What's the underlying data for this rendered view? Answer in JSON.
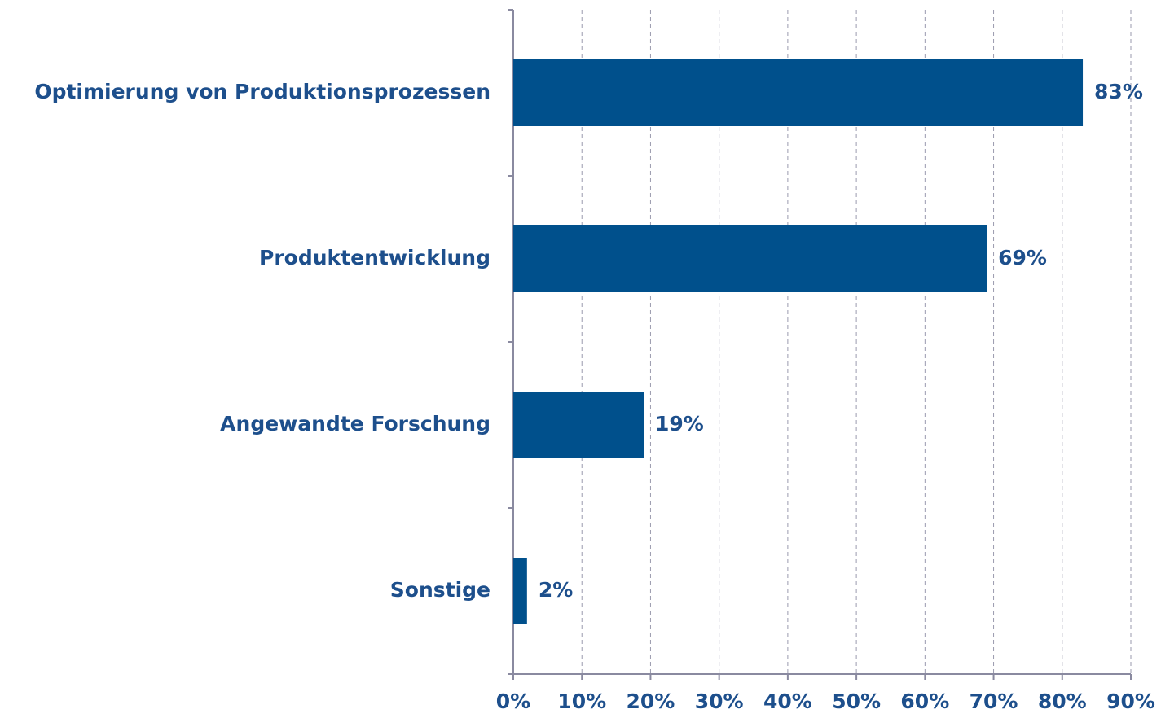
{
  "chart_data": {
    "type": "bar",
    "orientation": "horizontal",
    "categories": [
      "Optimierung von Produktionsprozessen",
      "Produktentwicklung",
      "Angewandte Forschung",
      "Sonstige"
    ],
    "values": [
      83,
      69,
      19,
      2
    ],
    "value_labels": [
      "83%",
      "69%",
      "19%",
      "2%"
    ],
    "color": "#00508c",
    "xlim": [
      0,
      90
    ],
    "xticks": [
      {
        "value": 0,
        "label": "0%"
      },
      {
        "value": 10,
        "label": "10%"
      },
      {
        "value": 20,
        "label": "20%"
      },
      {
        "value": 30,
        "label": "30%"
      },
      {
        "value": 40,
        "label": "40%"
      },
      {
        "value": 50,
        "label": "50%"
      },
      {
        "value": 60,
        "label": "60%"
      },
      {
        "value": 70,
        "label": "70%"
      },
      {
        "value": 80,
        "label": "80%"
      },
      {
        "value": 90,
        "label": "90%"
      }
    ],
    "grid": true
  }
}
